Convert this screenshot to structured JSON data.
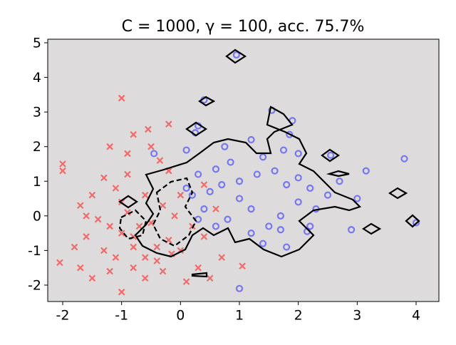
{
  "chart_data": {
    "type": "scatter",
    "title": "C = 1000, γ = 100, acc. 75.7%",
    "background": "#dddbdb",
    "xlim": [
      -2.254,
      4.387
    ],
    "ylim": [
      -2.474,
      5.103
    ],
    "xticks": [
      -2,
      -1,
      0,
      1,
      2,
      3,
      4
    ],
    "yticks": [
      -2,
      -1,
      0,
      1,
      2,
      3,
      4,
      5
    ],
    "series": [
      {
        "color": "#ff2020",
        "marker": "x",
        "x": [
          -1.0,
          -2.0,
          -2.0,
          -0.8,
          -0.55,
          -0.2,
          -1.2,
          -0.9,
          -0.5,
          -0.35,
          -1.5,
          -1.7,
          -1.3,
          -1.1,
          -1.4,
          -1.6,
          -1.7,
          -2.05,
          -1.5,
          -1.2,
          -1.0,
          -0.8,
          -0.6,
          -0.4,
          -0.2,
          0.0,
          -1.0,
          -0.8,
          -1.2,
          -0.9,
          -0.6,
          -0.3,
          -0.1,
          0.2,
          0.4,
          -0.5,
          -0.7,
          -1.3,
          -1.1,
          0.3,
          0.1,
          0.5,
          1.05,
          0.7,
          -0.3,
          -0.6,
          -1.6,
          -1.0,
          0.0,
          -0.2,
          0.4,
          0.6,
          -0.8,
          -0.4,
          -0.15,
          -0.9,
          -1.8
        ],
        "y": [
          3.4,
          1.5,
          1.3,
          2.35,
          2.5,
          2.65,
          2.0,
          1.8,
          2.0,
          1.6,
          0.6,
          0.3,
          1.1,
          0.8,
          -0.1,
          -0.6,
          -1.5,
          -1.35,
          -1.8,
          -1.6,
          -2.2,
          -1.5,
          -1.2,
          -0.9,
          -0.7,
          -1.0,
          -0.5,
          -0.9,
          -0.3,
          0.1,
          0.6,
          0.3,
          0.0,
          -0.3,
          -0.6,
          -0.2,
          -0.3,
          -1.0,
          -1.2,
          -1.5,
          -1.9,
          -1.8,
          -1.45,
          -1.2,
          -1.6,
          -1.8,
          0.0,
          0.4,
          0.6,
          1.3,
          0.9,
          0.2,
          -0.6,
          -1.3,
          -1.1,
          1.2,
          -0.9
        ]
      },
      {
        "color": "#3333ff",
        "marker": "o",
        "x": [
          0.95,
          0.4,
          1.55,
          1.9,
          0.3,
          0.25,
          0.1,
          0.75,
          1.2,
          1.85,
          2.0,
          1.75,
          1.4,
          0.85,
          0.6,
          0.3,
          0.1,
          -0.45,
          1.0,
          1.3,
          1.6,
          1.8,
          2.2,
          2.5,
          2.7,
          3.15,
          3.0,
          2.9,
          3.8,
          4.0,
          2.55,
          2.3,
          2.0,
          1.7,
          1.5,
          1.2,
          1.0,
          0.8,
          0.6,
          0.4,
          0.2,
          1.2,
          1.4,
          1.8,
          2.15,
          2.2,
          1.0,
          1.7,
          0.3,
          0.5,
          2.0,
          0.7
        ],
        "y": [
          4.65,
          3.35,
          3.05,
          2.75,
          2.6,
          2.4,
          1.9,
          2.0,
          2.2,
          2.35,
          1.8,
          1.9,
          1.7,
          1.55,
          1.35,
          1.2,
          0.8,
          1.8,
          1.0,
          1.2,
          1.3,
          0.9,
          0.8,
          0.6,
          1.0,
          1.3,
          0.5,
          -0.4,
          1.65,
          -0.2,
          1.75,
          0.2,
          0.4,
          0.0,
          -0.3,
          0.2,
          0.5,
          -0.1,
          -0.3,
          0.2,
          0.6,
          -0.5,
          -0.8,
          -0.9,
          -0.45,
          -0.3,
          -2.1,
          -0.4,
          -0.1,
          0.7,
          1.1,
          0.9
        ]
      }
    ]
  }
}
